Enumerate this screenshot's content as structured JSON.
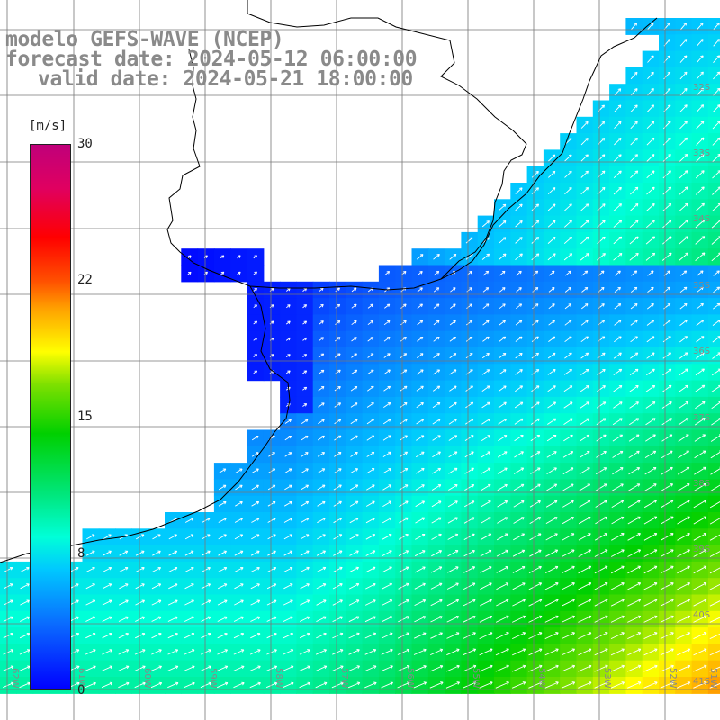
{
  "titles": {
    "line1": "modelo GEFS-WAVE (NCEP)",
    "line2": "forecast date: 2024-05-12 06:00:00",
    "line3": "valid date: 2024-05-21 18:00:00"
  },
  "legend": {
    "unit": "[m/s]",
    "ticks": [
      "30",
      "22",
      "15",
      "8",
      "0"
    ],
    "min": 0,
    "max": 30
  },
  "lat_labels": [
    "32S",
    "33S",
    "34S",
    "35S",
    "36S",
    "37S",
    "38S",
    "39S",
    "40S",
    "41S"
  ],
  "lon_labels": [
    "62W",
    "61W",
    "60W",
    "59W",
    "58W",
    "57W",
    "56W",
    "55W",
    "54W",
    "53W",
    "52W",
    "51W"
  ],
  "colors": {
    "land": "#ffffff",
    "grid": "#777777",
    "coast": "#000000",
    "arrow": "#ffffff",
    "label": "#8a8a8a"
  }
}
